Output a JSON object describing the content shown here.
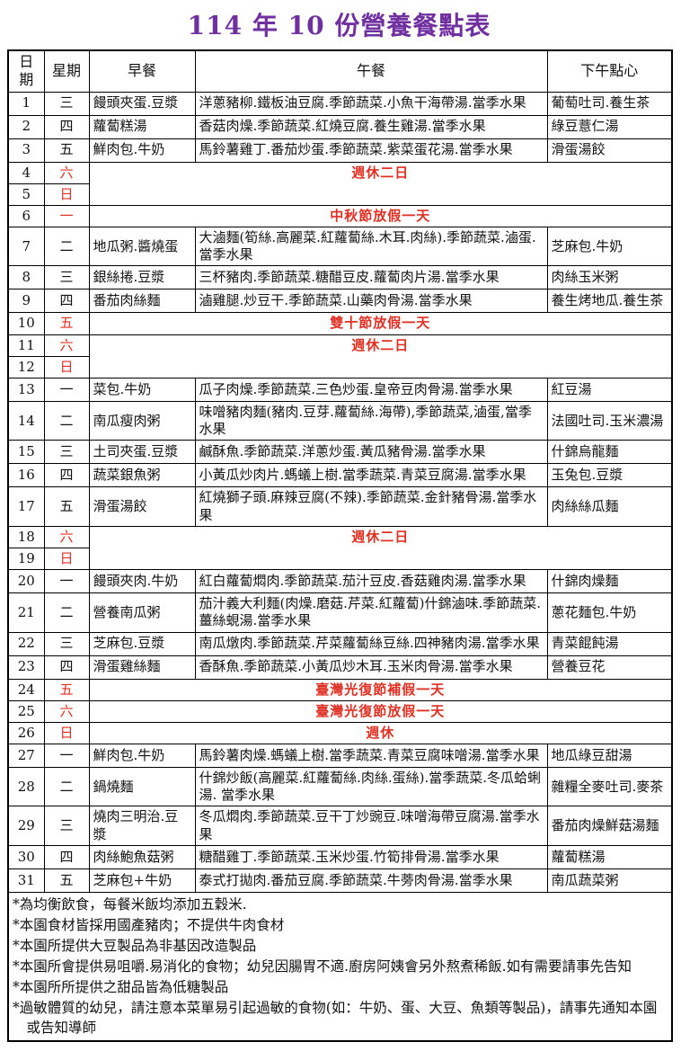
{
  "title": "114 年 10 份營養餐點表",
  "colors": {
    "title_purple": "#7030A0",
    "holiday_red": "#E03024",
    "border_black": "#000000"
  },
  "table": {
    "headers": {
      "date": "日期",
      "weekday": "星期",
      "breakfast": "早餐",
      "lunch": "午餐",
      "snack": "下午點心"
    },
    "rows": [
      {
        "date": "1",
        "weekday": "三",
        "type": "normal",
        "breakfast": "饅頭夾蛋.豆漿",
        "lunch": "洋蔥豬柳.鐵板油豆腐.季節蔬菜.小魚干海帶湯.當季水果",
        "snack": "葡萄吐司.養生茶"
      },
      {
        "date": "2",
        "weekday": "四",
        "type": "normal",
        "breakfast": "蘿蔔糕湯",
        "lunch": "香菇肉燥.季節蔬菜.紅燒豆腐.養生雞湯.當季水果",
        "snack": "綠豆薏仁湯"
      },
      {
        "date": "3",
        "weekday": "五",
        "type": "normal",
        "breakfast": "鮮肉包.牛奶",
        "lunch": "馬鈴薯雞丁.番茄炒蛋.季節蔬菜.紫菜蛋花湯.當季水果",
        "snack": "滑蛋湯餃"
      },
      {
        "date": "4",
        "weekday": "六",
        "type": "holiday",
        "holiday": "週休二日",
        "rowspan": 2
      },
      {
        "date": "5",
        "weekday": "日",
        "type": "continuation"
      },
      {
        "date": "6",
        "weekday": "一",
        "type": "holiday",
        "holiday": "中秋節放假一天",
        "rowspan": 1
      },
      {
        "date": "7",
        "weekday": "二",
        "type": "normal",
        "breakfast": "地瓜粥.醬燒蛋",
        "lunch": "大滷麵(筍絲.高麗菜.紅蘿蔔絲.木耳.肉絲).季節蔬菜.滷蛋.當季水果",
        "snack": "芝麻包.牛奶"
      },
      {
        "date": "8",
        "weekday": "三",
        "type": "normal",
        "breakfast": "銀絲捲.豆漿",
        "lunch": "三杯豬肉.季節蔬菜.糖醋豆皮.蘿蔔肉片湯.當季水果",
        "snack": "肉絲玉米粥"
      },
      {
        "date": "9",
        "weekday": "四",
        "type": "normal",
        "breakfast": "番茄肉絲麵",
        "lunch": "滷雞腿.炒豆干.季節蔬菜.山藥肉骨湯.當季水果",
        "snack": "養生烤地瓜.養生茶"
      },
      {
        "date": "10",
        "weekday": "五",
        "type": "holiday",
        "holiday": "雙十節放假一天",
        "rowspan": 1
      },
      {
        "date": "11",
        "weekday": "六",
        "type": "holiday",
        "holiday": "週休二日",
        "rowspan": 2
      },
      {
        "date": "12",
        "weekday": "日",
        "type": "continuation"
      },
      {
        "date": "13",
        "weekday": "一",
        "type": "normal",
        "breakfast": "菜包.牛奶",
        "lunch": "瓜子肉燥.季節蔬菜.三色炒蛋.皇帝豆肉骨湯.當季水果",
        "snack": "紅豆湯"
      },
      {
        "date": "14",
        "weekday": "二",
        "type": "normal",
        "breakfast": "南瓜瘦肉粥",
        "lunch": "味噌豬肉麵(豬肉.豆芽.蘿蔔絲.海帶),季節蔬菜,滷蛋,當季水果",
        "snack": "法國吐司.玉米濃湯"
      },
      {
        "date": "15",
        "weekday": "三",
        "type": "normal",
        "breakfast": "土司夾蛋.豆漿",
        "lunch": "鹹酥魚.季節蔬菜.洋蔥炒蛋.黃瓜豬骨湯.當季水果",
        "snack": "什錦烏龍麵"
      },
      {
        "date": "16",
        "weekday": "四",
        "type": "normal",
        "breakfast": "蔬菜銀魚粥",
        "lunch": "小黃瓜炒肉片.螞蟻上樹.當季蔬菜.青菜豆腐湯.當季水果",
        "snack": "玉兔包.豆漿"
      },
      {
        "date": "17",
        "weekday": "五",
        "type": "normal",
        "breakfast": "滑蛋湯餃",
        "lunch": "紅燒獅子頭.麻辣豆腐(不辣).季節蔬菜.金針豬骨湯.當季水果",
        "snack": "肉絲絲瓜麵"
      },
      {
        "date": "18",
        "weekday": "六",
        "type": "holiday",
        "holiday": "週休二日",
        "rowspan": 2
      },
      {
        "date": "19",
        "weekday": "日",
        "type": "continuation"
      },
      {
        "date": "20",
        "weekday": "一",
        "type": "normal",
        "breakfast": "饅頭夾肉.牛奶",
        "lunch": "紅白蘿蔔燜肉.季節蔬菜.茄汁豆皮.香菇雞肉湯.當季水果",
        "snack": "什錦肉燥麵"
      },
      {
        "date": "21",
        "weekday": "二",
        "type": "normal",
        "breakfast": "營養南瓜粥",
        "lunch": "茄汁義大利麵(肉燥.磨菇.芹菜.紅蘿蔔)什錦滷味.季節蔬菜.薑絲蜆湯.當季水果",
        "snack": "蔥花麵包.牛奶"
      },
      {
        "date": "22",
        "weekday": "三",
        "type": "normal",
        "breakfast": "芝麻包.豆漿",
        "lunch": "南瓜燉肉.季節蔬菜.芹菜蘿蔔絲豆絲.四神豬肉湯.當季水果",
        "snack": "青菜餛飩湯"
      },
      {
        "date": "23",
        "weekday": "四",
        "type": "normal",
        "breakfast": "滑蛋雞絲麵",
        "lunch": "香酥魚.季節蔬菜.小黃瓜炒木耳.玉米肉骨湯.當季水果",
        "snack": "營養豆花"
      },
      {
        "date": "24",
        "weekday": "五",
        "type": "holiday",
        "holiday": "臺灣光復節補假一天",
        "rowspan": 1
      },
      {
        "date": "25",
        "weekday": "六",
        "type": "holiday",
        "holiday": "臺灣光復節放假一天",
        "rowspan": 1
      },
      {
        "date": "26",
        "weekday": "日",
        "type": "holiday",
        "holiday": "週休",
        "rowspan": 1
      },
      {
        "date": "27",
        "weekday": "一",
        "type": "normal",
        "breakfast": "鮮肉包.牛奶",
        "lunch": "馬鈴薯肉燥.螞蟻上樹.當季蔬菜.青菜豆腐味噌湯.當季水果",
        "snack": "地瓜綠豆甜湯"
      },
      {
        "date": "28",
        "weekday": "二",
        "type": "normal",
        "breakfast": "鍋燒麵",
        "lunch": "什錦炒飯(高麗菜.紅蘿蔔絲.肉絲.蛋絲).當季蔬菜.冬瓜蛤蜊湯. 當季水果",
        "snack": "雜糧全麥吐司.麥茶"
      },
      {
        "date": "29",
        "weekday": "三",
        "type": "normal",
        "breakfast": "燒肉三明治.豆漿",
        "lunch": "冬瓜燜肉.季節蔬菜.豆干丁炒豌豆.味噌海帶豆腐湯.當季水果",
        "snack": "番茄肉燥鮮菇湯麵"
      },
      {
        "date": "30",
        "weekday": "四",
        "type": "normal",
        "breakfast": "肉絲鮑魚菇粥",
        "lunch": "糖醋雞丁.季節蔬菜.玉米炒蛋.竹筍排骨湯.當季水果",
        "snack": "蘿蔔糕湯"
      },
      {
        "date": "31",
        "weekday": "五",
        "type": "normal",
        "breakfast": "芝麻包+牛奶",
        "lunch": "泰式打拋肉.番茄豆腐.季節蔬菜.牛蒡肉骨湯.當季水果",
        "snack": "南瓜蔬菜粥"
      }
    ]
  },
  "footnotes": [
    "*為均衡飲食，每餐米飯均添加五穀米.",
    "*本園食材皆採用國產豬肉；不提供牛肉食材",
    "*本園所提供大豆製品為非基因改造製品",
    "*本園所會提供易咀嚼.易消化的食物；幼兒因腸胃不適.廚房阿姨會另外熬煮稀飯.如有需要請事先告知",
    "*本園所所提供之甜品皆為低糖製品",
    "*過敏體質的幼兒，請注意本菜單易引起過敏的食物(如：牛奶、蛋、大豆、魚類等製品)，請事先通知本園或告知導師"
  ]
}
